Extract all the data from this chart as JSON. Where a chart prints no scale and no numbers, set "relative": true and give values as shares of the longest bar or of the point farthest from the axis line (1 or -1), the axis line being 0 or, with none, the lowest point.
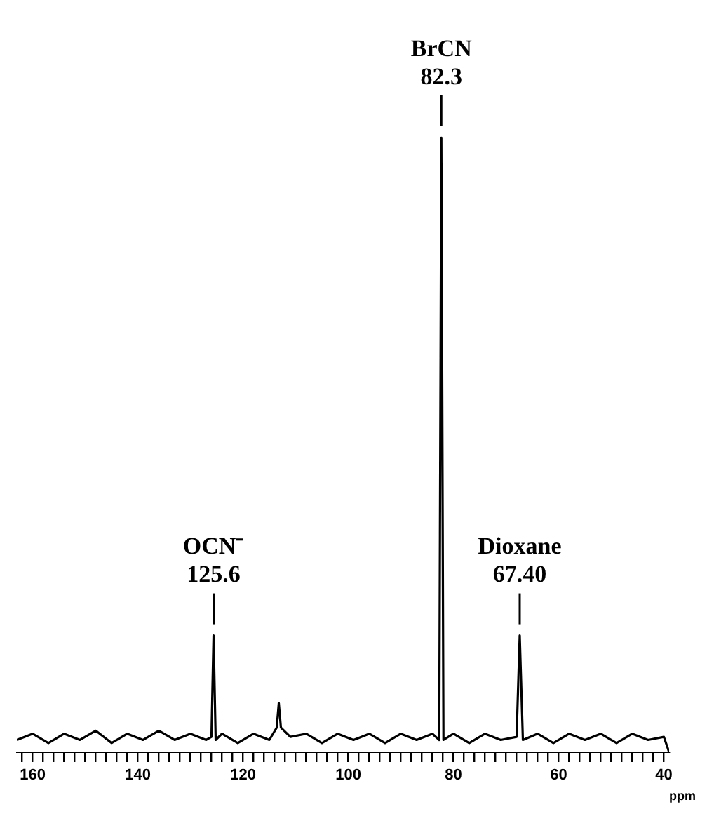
{
  "chart_data": {
    "type": "line",
    "relative": true,
    "xlabel": "ppm",
    "xlim": [
      163,
      39
    ],
    "xticks": [
      {
        "value": 162,
        "label": null
      },
      160,
      {
        "value": 158,
        "label": null
      },
      {
        "value": 156,
        "label": null
      },
      {
        "value": 154,
        "label": null
      },
      {
        "value": 152,
        "label": null
      },
      {
        "value": 150,
        "label": null
      },
      {
        "value": 148,
        "label": null
      },
      {
        "value": 146,
        "label": null
      },
      {
        "value": 144,
        "label": null
      },
      {
        "value": 142,
        "label": null
      },
      140,
      {
        "value": 138,
        "label": null
      },
      {
        "value": 136,
        "label": null
      },
      {
        "value": 134,
        "label": null
      },
      {
        "value": 132,
        "label": null
      },
      {
        "value": 130,
        "label": null
      },
      {
        "value": 128,
        "label": null
      },
      {
        "value": 126,
        "label": null
      },
      {
        "value": 124,
        "label": null
      },
      {
        "value": 122,
        "label": null
      },
      120,
      {
        "value": 118,
        "label": null
      },
      {
        "value": 116,
        "label": null
      },
      {
        "value": 114,
        "label": null
      },
      {
        "value": 112,
        "label": null
      },
      {
        "value": 110,
        "label": null
      },
      {
        "value": 108,
        "label": null
      },
      {
        "value": 106,
        "label": null
      },
      {
        "value": 104,
        "label": null
      },
      {
        "value": 102,
        "label": null
      },
      100,
      {
        "value": 98,
        "label": null
      },
      {
        "value": 96,
        "label": null
      },
      {
        "value": 94,
        "label": null
      },
      {
        "value": 92,
        "label": null
      },
      {
        "value": 90,
        "label": null
      },
      {
        "value": 88,
        "label": null
      },
      {
        "value": 86,
        "label": null
      },
      {
        "value": 84,
        "label": null
      },
      {
        "value": 82,
        "label": null
      },
      80,
      {
        "value": 78,
        "label": null
      },
      {
        "value": 76,
        "label": null
      },
      {
        "value": 74,
        "label": null
      },
      {
        "value": 72,
        "label": null
      },
      {
        "value": 70,
        "label": null
      },
      {
        "value": 68,
        "label": null
      },
      {
        "value": 66,
        "label": null
      },
      {
        "value": 64,
        "label": null
      },
      {
        "value": 62,
        "label": null
      },
      60,
      {
        "value": 58,
        "label": null
      },
      {
        "value": 56,
        "label": null
      },
      {
        "value": 54,
        "label": null
      },
      {
        "value": 52,
        "label": null
      },
      {
        "value": 50,
        "label": null
      },
      {
        "value": 48,
        "label": null
      },
      {
        "value": 46,
        "label": null
      },
      {
        "value": 44,
        "label": null
      },
      {
        "value": 42,
        "label": null
      },
      40
    ],
    "grid": false,
    "legend": false,
    "marker": "none",
    "line_style": "solid",
    "series": [
      {
        "color": "#000000",
        "x": [
          163,
          160,
          157,
          154,
          151,
          148,
          145,
          142,
          139,
          136,
          133,
          130,
          127,
          126,
          125.6,
          125.2,
          124,
          121,
          118,
          115,
          113.6,
          113.2,
          112.8,
          111,
          108,
          105,
          102,
          99,
          96,
          93,
          90,
          87,
          84,
          82.7,
          82.3,
          81.9,
          80,
          77,
          74,
          71,
          68,
          67.4,
          66.8,
          64,
          61,
          58,
          55,
          52,
          49,
          46,
          43,
          40,
          39
        ],
        "values": [
          0.02,
          0.03,
          0.015,
          0.03,
          0.02,
          0.035,
          0.015,
          0.03,
          0.02,
          0.035,
          0.02,
          0.03,
          0.02,
          0.025,
          0.19,
          0.02,
          0.03,
          0.015,
          0.03,
          0.02,
          0.04,
          0.08,
          0.04,
          0.025,
          0.03,
          0.015,
          0.03,
          0.02,
          0.03,
          0.015,
          0.03,
          0.02,
          0.03,
          0.02,
          1,
          0.02,
          0.03,
          0.015,
          0.03,
          0.02,
          0.025,
          0.19,
          0.02,
          0.03,
          0.015,
          0.03,
          0.02,
          0.03,
          0.015,
          0.03,
          0.02,
          0.025,
          0
        ]
      }
    ],
    "annotations": [
      {
        "text": "OCN⁻\n125.6",
        "x": 125.6,
        "y": 0.19
      },
      {
        "text": "BrCN\n82.3",
        "x": 82.3,
        "y": 1
      },
      {
        "text": "Dioxane\n67.40",
        "x": 67.4,
        "y": 0.19
      }
    ]
  }
}
